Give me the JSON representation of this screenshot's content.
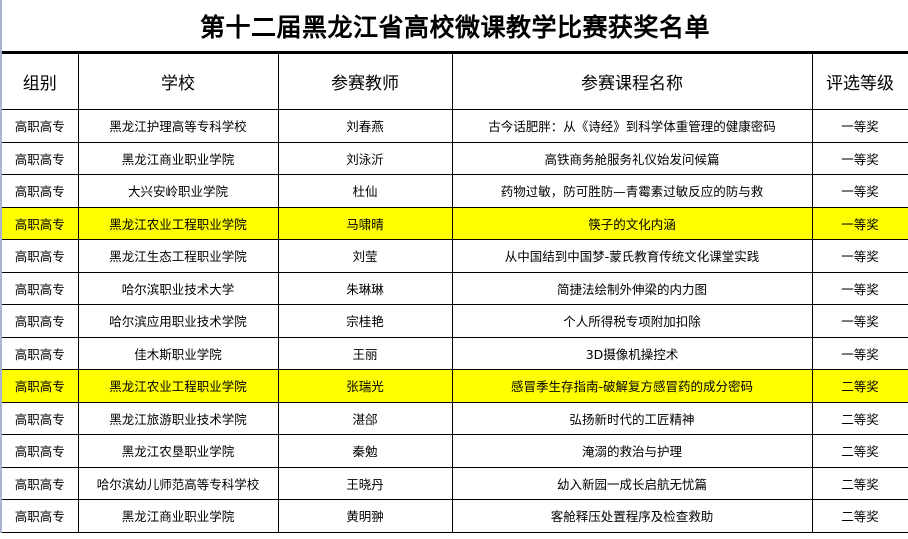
{
  "title": "第十二届黑龙江省高校微课教学比赛获奖名单",
  "columns": [
    "组别",
    "学校",
    "参赛教师",
    "参赛课程名称",
    "评选等级"
  ],
  "highlight_color": "#ffff00",
  "rows": [
    {
      "group": "高职高专",
      "school": "黑龙江护理高等专科学校",
      "teacher": "刘春燕",
      "course": "古今话肥胖：从《诗经》到科学体重管理的健康密码",
      "award": "一等奖",
      "highlighted": false
    },
    {
      "group": "高职高专",
      "school": "黑龙江商业职业学院",
      "teacher": "刘泳沂",
      "course": "高铁商务舱服务礼仪始发问候篇",
      "award": "一等奖",
      "highlighted": false
    },
    {
      "group": "高职高专",
      "school": "大兴安岭职业学院",
      "teacher": "杜仙",
      "course": "药物过敏，防可胜防—青霉素过敏反应的防与救",
      "award": "一等奖",
      "highlighted": false
    },
    {
      "group": "高职高专",
      "school": "黑龙江农业工程职业学院",
      "teacher": "马啸晴",
      "course": "筷子的文化内涵",
      "award": "一等奖",
      "highlighted": true
    },
    {
      "group": "高职高专",
      "school": "黑龙江生态工程职业学院",
      "teacher": "刘莹",
      "course": "从中国结到中国梦-蒙氏教育传统文化课堂实践",
      "award": "一等奖",
      "highlighted": false
    },
    {
      "group": "高职高专",
      "school": "哈尔滨职业技术大学",
      "teacher": "朱琳琳",
      "course": "简捷法绘制外伸梁的内力图",
      "award": "一等奖",
      "highlighted": false
    },
    {
      "group": "高职高专",
      "school": "哈尔滨应用职业技术学院",
      "teacher": "宗桂艳",
      "course": "个人所得税专项附加扣除",
      "award": "一等奖",
      "highlighted": false
    },
    {
      "group": "高职高专",
      "school": "佳木斯职业学院",
      "teacher": "王丽",
      "course": "3D摄像机操控术",
      "award": "一等奖",
      "highlighted": false
    },
    {
      "group": "高职高专",
      "school": "黑龙江农业工程职业学院",
      "teacher": "张瑞光",
      "course": "感冒季生存指南-破解复方感冒药的成分密码",
      "award": "二等奖",
      "highlighted": true
    },
    {
      "group": "高职高专",
      "school": "黑龙江旅游职业技术学院",
      "teacher": "湛郃",
      "course": "弘扬新时代的工匠精神",
      "award": "二等奖",
      "highlighted": false
    },
    {
      "group": "高职高专",
      "school": "黑龙江农垦职业学院",
      "teacher": "秦勉",
      "course": "淹溺的救治与护理",
      "award": "二等奖",
      "highlighted": false
    },
    {
      "group": "高职高专",
      "school": "哈尔滨幼儿师范高等专科学校",
      "teacher": "王晓丹",
      "course": "幼入新园一成长启航无忧篇",
      "award": "二等奖",
      "highlighted": false
    },
    {
      "group": "高职高专",
      "school": "黑龙江商业职业学院",
      "teacher": "黄明翀",
      "course": "客舱释压处置程序及检查救助",
      "award": "二等奖",
      "highlighted": false
    }
  ]
}
